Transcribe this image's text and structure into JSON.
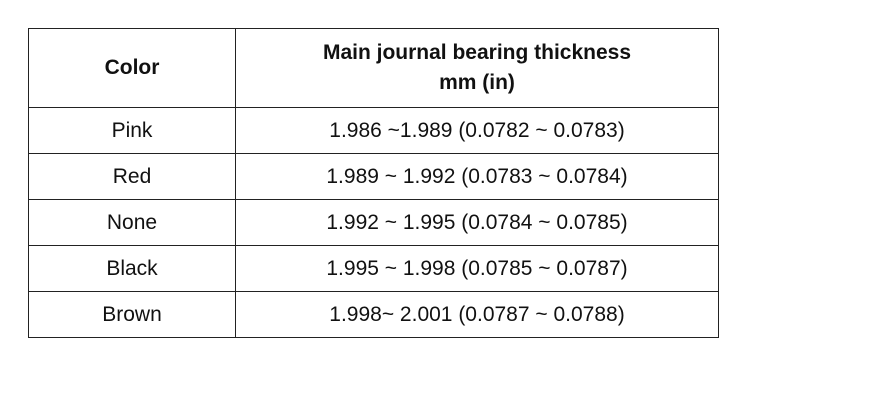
{
  "table": {
    "header": [
      "Color",
      [
        "Main journal bearing thickness",
        "mm (in)"
      ]
    ],
    "rows": [
      [
        "Pink",
        "1.986 ~1.989 (0.0782 ~ 0.0783)"
      ],
      [
        "Red",
        "1.989 ~ 1.992 (0.0783 ~ 0.0784)"
      ],
      [
        "None",
        "1.992 ~ 1.995 (0.0784 ~ 0.0785)"
      ],
      [
        "Black",
        "1.995 ~ 1.998 (0.0785 ~ 0.0787)"
      ],
      [
        "Brown",
        "1.998~ 2.001 (0.0787 ~ 0.0788)"
      ]
    ]
  }
}
